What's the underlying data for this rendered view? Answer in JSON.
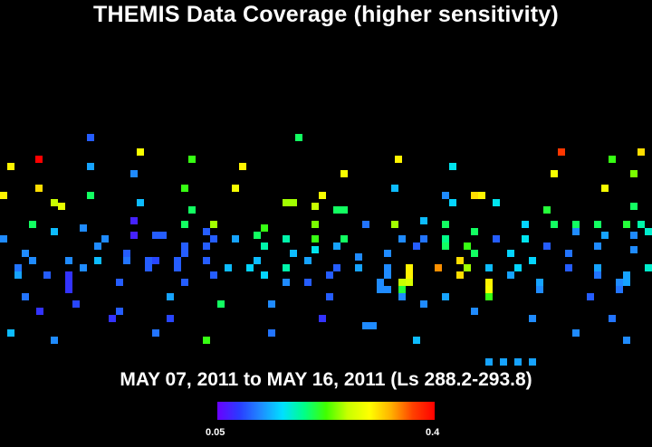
{
  "title": "THEMIS Data Coverage (higher sensitivity)",
  "date_range": "MAY 07, 2011 to MAY 16, 2011 (Ls 288.2-293.8)",
  "colorbar": {
    "min_label": "0.05",
    "max_label": "0.4",
    "stops": [
      "#6a00ff",
      "#2a3bff",
      "#1f8bff",
      "#00e0ff",
      "#00ff88",
      "#40ff00",
      "#c8ff00",
      "#ffff00",
      "#ffb000",
      "#ff4000",
      "#ff0000"
    ]
  },
  "chart_data": {
    "type": "heatmap",
    "value_range": [
      0.05,
      0.4
    ],
    "cells": [
      [
        100,
        152,
        0.1
      ],
      [
        330,
        152,
        0.2
      ],
      [
        155,
        168,
        0.29
      ],
      [
        212,
        176,
        0.22
      ],
      [
        440,
        176,
        0.3
      ],
      [
        620,
        168,
        0.37
      ],
      [
        708,
        168,
        0.31
      ],
      [
        12,
        184,
        0.3
      ],
      [
        43,
        176,
        0.4
      ],
      [
        100,
        184,
        0.13
      ],
      [
        268,
        184,
        0.3
      ],
      [
        500,
        184,
        0.16
      ],
      [
        676,
        176,
        0.22
      ],
      [
        148,
        192,
        0.12
      ],
      [
        380,
        192,
        0.29
      ],
      [
        612,
        192,
        0.29
      ],
      [
        700,
        192,
        0.24
      ],
      [
        4,
        216,
        0.3
      ],
      [
        43,
        208,
        0.31
      ],
      [
        100,
        216,
        0.2
      ],
      [
        204,
        208,
        0.22
      ],
      [
        260,
        208,
        0.29
      ],
      [
        356,
        216,
        0.29
      ],
      [
        436,
        208,
        0.14
      ],
      [
        492,
        216,
        0.12
      ],
      [
        524,
        216,
        0.31
      ],
      [
        532,
        216,
        0.3
      ],
      [
        668,
        208,
        0.29
      ],
      [
        60,
        224,
        0.26
      ],
      [
        68,
        228,
        0.28
      ],
      [
        155,
        224,
        0.14
      ],
      [
        212,
        232,
        0.2
      ],
      [
        316,
        224,
        0.25
      ],
      [
        324,
        224,
        0.25
      ],
      [
        348,
        228,
        0.26
      ],
      [
        372,
        232,
        0.2
      ],
      [
        380,
        232,
        0.2
      ],
      [
        500,
        224,
        0.15
      ],
      [
        548,
        224,
        0.16
      ],
      [
        604,
        232,
        0.21
      ],
      [
        700,
        228,
        0.2
      ],
      [
        36,
        248,
        0.2
      ],
      [
        92,
        252,
        0.12
      ],
      [
        148,
        244,
        0.07
      ],
      [
        148,
        260,
        0.07
      ],
      [
        204,
        248,
        0.2
      ],
      [
        236,
        248,
        0.25
      ],
      [
        292,
        252,
        0.22
      ],
      [
        348,
        248,
        0.24
      ],
      [
        404,
        248,
        0.11
      ],
      [
        436,
        248,
        0.25
      ],
      [
        468,
        244,
        0.14
      ],
      [
        492,
        248,
        0.2
      ],
      [
        580,
        248,
        0.15
      ],
      [
        612,
        248,
        0.2
      ],
      [
        636,
        248,
        0.2
      ],
      [
        660,
        248,
        0.2
      ],
      [
        692,
        248,
        0.21
      ],
      [
        708,
        248,
        0.18
      ],
      [
        4,
        264,
        0.12
      ],
      [
        60,
        256,
        0.14
      ],
      [
        116,
        264,
        0.12
      ],
      [
        172,
        260,
        0.1
      ],
      [
        180,
        260,
        0.1
      ],
      [
        228,
        256,
        0.1
      ],
      [
        236,
        264,
        0.1
      ],
      [
        260,
        264,
        0.13
      ],
      [
        284,
        260,
        0.2
      ],
      [
        316,
        264,
        0.18
      ],
      [
        348,
        264,
        0.22
      ],
      [
        380,
        264,
        0.2
      ],
      [
        444,
        264,
        0.12
      ],
      [
        468,
        264,
        0.11
      ],
      [
        492,
        264,
        0.19
      ],
      [
        524,
        256,
        0.2
      ],
      [
        548,
        264,
        0.1
      ],
      [
        580,
        264,
        0.16
      ],
      [
        636,
        256,
        0.12
      ],
      [
        668,
        260,
        0.13
      ],
      [
        700,
        260,
        0.12
      ],
      [
        716,
        256,
        0.17
      ],
      [
        28,
        280,
        0.12
      ],
      [
        108,
        272,
        0.12
      ],
      [
        140,
        280,
        0.1
      ],
      [
        204,
        272,
        0.1
      ],
      [
        228,
        272,
        0.1
      ],
      [
        292,
        272,
        0.18
      ],
      [
        324,
        280,
        0.14
      ],
      [
        348,
        276,
        0.16
      ],
      [
        372,
        272,
        0.13
      ],
      [
        396,
        284,
        0.12
      ],
      [
        428,
        280,
        0.12
      ],
      [
        460,
        272,
        0.1
      ],
      [
        492,
        272,
        0.2
      ],
      [
        516,
        272,
        0.22
      ],
      [
        524,
        280,
        0.2
      ],
      [
        564,
        280,
        0.15
      ],
      [
        604,
        272,
        0.1
      ],
      [
        628,
        280,
        0.11
      ],
      [
        660,
        272,
        0.12
      ],
      [
        700,
        276,
        0.12
      ],
      [
        20,
        296,
        0.11
      ],
      [
        36,
        288,
        0.12
      ],
      [
        76,
        288,
        0.12
      ],
      [
        108,
        288,
        0.14
      ],
      [
        140,
        288,
        0.11
      ],
      [
        164,
        288,
        0.1
      ],
      [
        172,
        288,
        0.09
      ],
      [
        196,
        288,
        0.1
      ],
      [
        204,
        280,
        0.1
      ],
      [
        228,
        288,
        0.1
      ],
      [
        252,
        296,
        0.14
      ],
      [
        276,
        296,
        0.15
      ],
      [
        284,
        288,
        0.14
      ],
      [
        316,
        296,
        0.18
      ],
      [
        340,
        288,
        0.13
      ],
      [
        372,
        296,
        0.1
      ],
      [
        396,
        296,
        0.13
      ],
      [
        428,
        296,
        0.12
      ],
      [
        452,
        296,
        0.3
      ],
      [
        484,
        296,
        0.34
      ],
      [
        508,
        288,
        0.31
      ],
      [
        516,
        296,
        0.25
      ],
      [
        540,
        296,
        0.14
      ],
      [
        572,
        296,
        0.15
      ],
      [
        628,
        296,
        0.1
      ],
      [
        660,
        296,
        0.13
      ],
      [
        716,
        296,
        0.17
      ],
      [
        20,
        304,
        0.13
      ],
      [
        52,
        304,
        0.1
      ],
      [
        76,
        304,
        0.08
      ],
      [
        92,
        296,
        0.12
      ],
      [
        164,
        296,
        0.1
      ],
      [
        196,
        296,
        0.1
      ],
      [
        236,
        304,
        0.1
      ],
      [
        292,
        304,
        0.15
      ],
      [
        364,
        304,
        0.1
      ],
      [
        428,
        304,
        0.12
      ],
      [
        452,
        304,
        0.3
      ],
      [
        508,
        304,
        0.31
      ],
      [
        564,
        304,
        0.13
      ],
      [
        588,
        288,
        0.15
      ],
      [
        660,
        304,
        0.11
      ],
      [
        692,
        304,
        0.13
      ],
      [
        76,
        312,
        0.08
      ],
      [
        132,
        312,
        0.1
      ],
      [
        204,
        312,
        0.1
      ],
      [
        316,
        312,
        0.12
      ],
      [
        340,
        312,
        0.1
      ],
      [
        420,
        312,
        0.12
      ],
      [
        444,
        312,
        0.26
      ],
      [
        452,
        312,
        0.27
      ],
      [
        540,
        312,
        0.3
      ],
      [
        596,
        312,
        0.13
      ],
      [
        684,
        312,
        0.12
      ],
      [
        692,
        312,
        0.13
      ],
      [
        76,
        320,
        0.08
      ],
      [
        420,
        320,
        0.12
      ],
      [
        428,
        320,
        0.12
      ],
      [
        444,
        320,
        0.21
      ],
      [
        540,
        320,
        0.29
      ],
      [
        596,
        320,
        0.12
      ],
      [
        684,
        320,
        0.11
      ],
      [
        28,
        328,
        0.11
      ],
      [
        188,
        328,
        0.13
      ],
      [
        364,
        328,
        0.1
      ],
      [
        444,
        328,
        0.12
      ],
      [
        492,
        328,
        0.13
      ],
      [
        540,
        328,
        0.22
      ],
      [
        652,
        328,
        0.1
      ],
      [
        84,
        336,
        0.09
      ],
      [
        244,
        336,
        0.2
      ],
      [
        300,
        336,
        0.12
      ],
      [
        468,
        336,
        0.12
      ],
      [
        44,
        344,
        0.08
      ],
      [
        132,
        344,
        0.1
      ],
      [
        524,
        344,
        0.12
      ],
      [
        124,
        352,
        0.08
      ],
      [
        188,
        352,
        0.09
      ],
      [
        356,
        352,
        0.08
      ],
      [
        588,
        352,
        0.12
      ],
      [
        676,
        352,
        0.11
      ],
      [
        404,
        360,
        0.12
      ],
      [
        412,
        360,
        0.12
      ],
      [
        12,
        368,
        0.14
      ],
      [
        172,
        368,
        0.11
      ],
      [
        300,
        368,
        0.11
      ],
      [
        636,
        368,
        0.12
      ],
      [
        60,
        376,
        0.12
      ],
      [
        228,
        376,
        0.22
      ],
      [
        460,
        376,
        0.14
      ],
      [
        692,
        376,
        0.12
      ],
      [
        540,
        400,
        0.13
      ],
      [
        556,
        400,
        0.13
      ],
      [
        572,
        400,
        0.13
      ],
      [
        588,
        400,
        0.13
      ]
    ]
  }
}
